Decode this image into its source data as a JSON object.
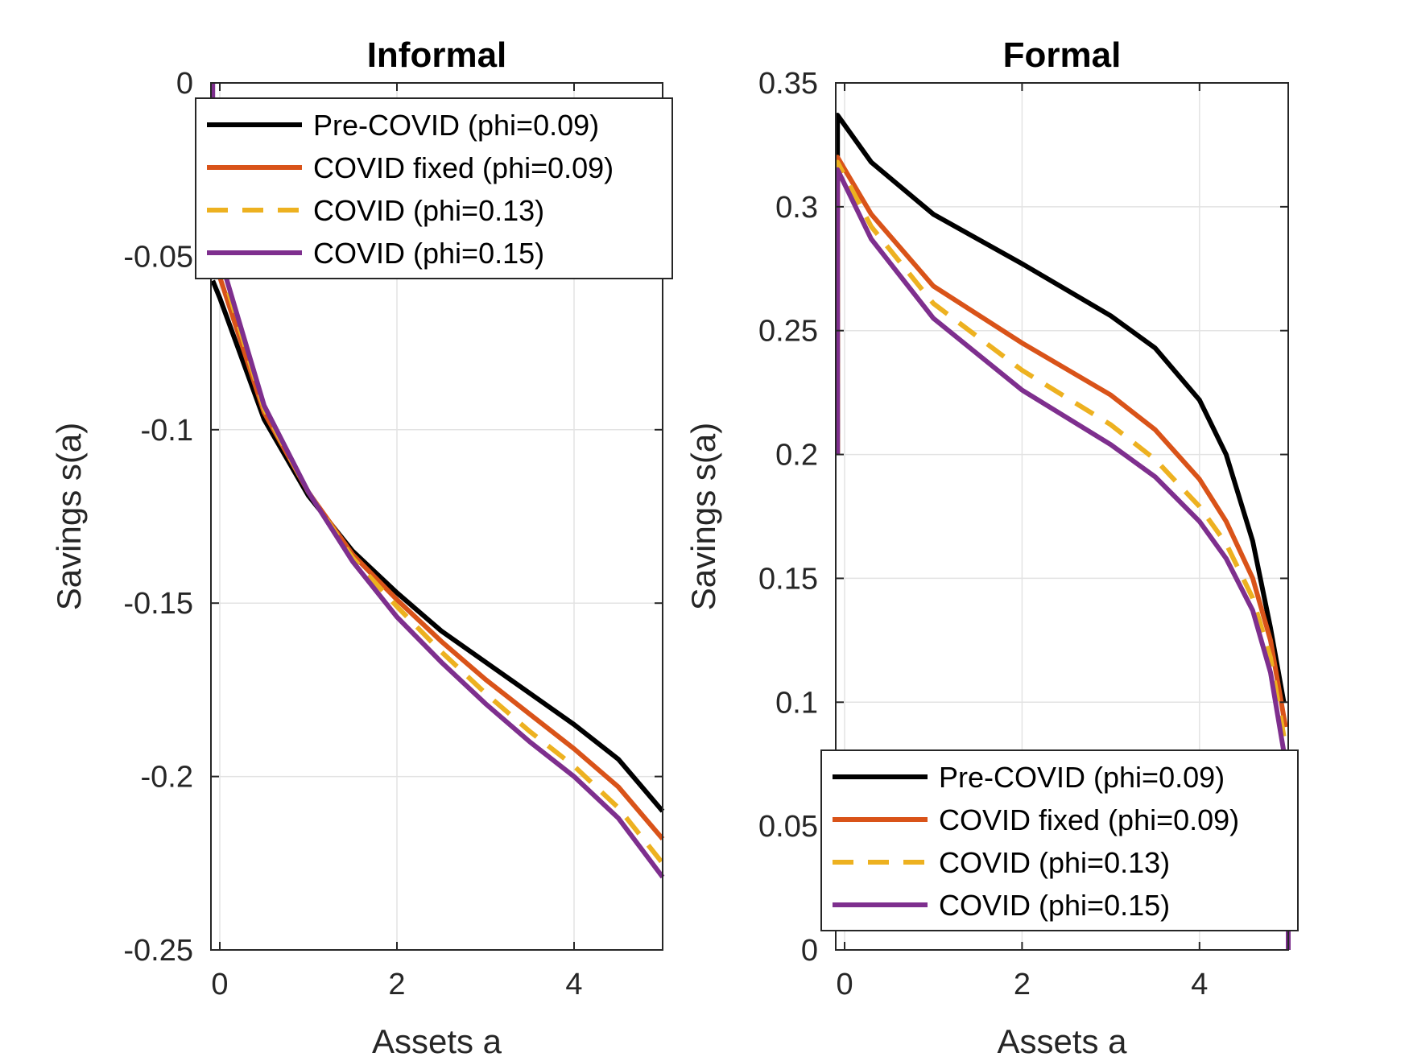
{
  "chart_data": [
    {
      "type": "line",
      "title": "Informal",
      "xlabel": "Assets a",
      "ylabel": "Savings s(a)",
      "xlim": [
        -0.1,
        5
      ],
      "ylim": [
        -0.25,
        0
      ],
      "xticks": [
        0,
        2,
        4
      ],
      "xtick_labels": [
        "0",
        "2",
        "4"
      ],
      "yticks": [
        0,
        -0.05,
        -0.1,
        -0.15,
        -0.2,
        -0.25
      ],
      "ytick_labels": [
        "0",
        "-0.05",
        "-0.1",
        "-0.15",
        "-0.2",
        "-0.25"
      ],
      "grid": true,
      "legend": "top-right",
      "series": [
        {
          "name": "Pre-COVID (phi=0.09)",
          "color": "#000000",
          "dash": "solid",
          "x": [
            -0.08,
            0,
            0.5,
            1,
            1.5,
            2,
            2.5,
            3,
            3.5,
            4,
            4.5,
            5
          ],
          "y": [
            -0.057,
            -0.062,
            -0.097,
            -0.119,
            -0.135,
            -0.147,
            -0.158,
            -0.167,
            -0.176,
            -0.185,
            -0.195,
            -0.21
          ]
        },
        {
          "name": "COVID fixed (phi=0.09)",
          "color": "#D95319",
          "dash": "solid",
          "x": [
            -0.08,
            0,
            0.5,
            1,
            1.5,
            2,
            2.5,
            3,
            3.5,
            4,
            4.5,
            5
          ],
          "y": [
            -0.04,
            -0.056,
            -0.095,
            -0.118,
            -0.136,
            -0.149,
            -0.161,
            -0.172,
            -0.182,
            -0.192,
            -0.203,
            -0.218
          ]
        },
        {
          "name": "COVID (phi=0.13)",
          "color": "#EDB120",
          "dash": "dashed",
          "x": [
            -0.08,
            0,
            0.5,
            1,
            1.5,
            2,
            2.5,
            3,
            3.5,
            4,
            4.5,
            5
          ],
          "y": [
            -0.02,
            -0.052,
            -0.094,
            -0.118,
            -0.137,
            -0.151,
            -0.164,
            -0.176,
            -0.187,
            -0.197,
            -0.209,
            -0.225
          ]
        },
        {
          "name": "COVID (phi=0.15)",
          "color": "#7E2F8E",
          "dash": "solid",
          "x": [
            -0.08,
            -0.08,
            0,
            0.5,
            1,
            1.5,
            2,
            2.5,
            3,
            3.5,
            4,
            4.5,
            5
          ],
          "y": [
            0,
            -0.03,
            -0.05,
            -0.093,
            -0.118,
            -0.138,
            -0.154,
            -0.167,
            -0.179,
            -0.19,
            -0.2,
            -0.212,
            -0.229
          ]
        }
      ]
    },
    {
      "type": "line",
      "title": "Formal",
      "xlabel": "Assets a",
      "ylabel": "Savings s(a)",
      "xlim": [
        -0.1,
        5
      ],
      "ylim": [
        0,
        0.35
      ],
      "xticks": [
        0,
        2,
        4
      ],
      "xtick_labels": [
        "0",
        "2",
        "4"
      ],
      "yticks": [
        0,
        0.05,
        0.1,
        0.15,
        0.2,
        0.25,
        0.3,
        0.35
      ],
      "ytick_labels": [
        "0",
        "0.05",
        "0.1",
        "0.15",
        "0.2",
        "0.25",
        "0.3",
        "0.35"
      ],
      "grid": true,
      "legend": "bottom-right",
      "series": [
        {
          "name": "Pre-COVID (phi=0.09)",
          "color": "#000000",
          "dash": "solid",
          "x": [
            -0.08,
            -0.08,
            0.3,
            1,
            2,
            3,
            3.5,
            4,
            4.3,
            4.6,
            4.8,
            4.95
          ],
          "y": [
            0.2,
            0.337,
            0.318,
            0.297,
            0.277,
            0.256,
            0.243,
            0.222,
            0.2,
            0.165,
            0.13,
            0.1
          ]
        },
        {
          "name": "COVID fixed (phi=0.09)",
          "color": "#D95319",
          "dash": "solid",
          "x": [
            -0.08,
            -0.08,
            0.3,
            1,
            2,
            3,
            3.5,
            4,
            4.3,
            4.6,
            4.8,
            4.97
          ],
          "y": [
            0.2,
            0.32,
            0.297,
            0.268,
            0.245,
            0.224,
            0.21,
            0.19,
            0.173,
            0.15,
            0.125,
            0.09
          ]
        },
        {
          "name": "COVID (phi=0.13)",
          "color": "#EDB120",
          "dash": "dashed",
          "x": [
            -0.08,
            -0.08,
            0.3,
            1,
            2,
            3,
            3.5,
            4,
            4.3,
            4.6,
            4.8,
            4.98
          ],
          "y": [
            0.2,
            0.318,
            0.292,
            0.261,
            0.234,
            0.212,
            0.198,
            0.179,
            0.164,
            0.142,
            0.118,
            0.08
          ]
        },
        {
          "name": "COVID (phi=0.15)",
          "color": "#7E2F8E",
          "dash": "solid",
          "x": [
            -0.08,
            -0.08,
            0.3,
            1,
            2,
            3,
            3.5,
            4,
            4.3,
            4.6,
            4.8,
            4.95,
            5,
            5
          ],
          "y": [
            0.2,
            0.315,
            0.287,
            0.255,
            0.226,
            0.204,
            0.191,
            0.173,
            0.158,
            0.137,
            0.112,
            0.08,
            0.03,
            0
          ]
        }
      ]
    }
  ]
}
